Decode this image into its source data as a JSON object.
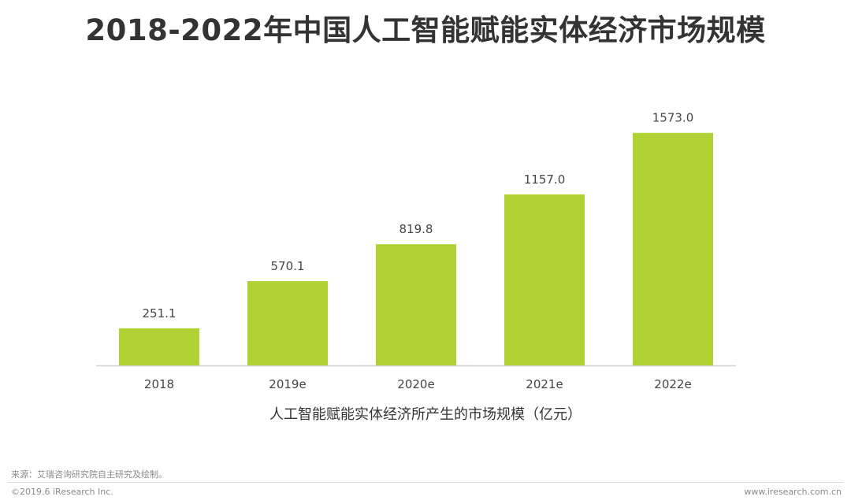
{
  "chart_data": {
    "type": "bar",
    "title": "2018-2022年中国人工智能赋能实体经济市场规模",
    "categories": [
      "2018",
      "2019e",
      "2020e",
      "2021e",
      "2022e"
    ],
    "values": [
      251.1,
      570.1,
      819.8,
      1157.0,
      1573.0
    ],
    "value_labels": [
      "251.1",
      "570.1",
      "819.8",
      "1157.0",
      "1573.0"
    ],
    "xlabel": "人工智能赋能实体经济所产生的市场规模（亿元）",
    "ylabel": "",
    "ylim": [
      0,
      1800
    ],
    "grid": false,
    "legend": "none",
    "colors": {
      "bar": "#b1d235",
      "axis": "#d0d0d0"
    }
  },
  "footer": {
    "source": "来源：艾瑞咨询研究院自主研究及绘制。",
    "copyright": "©2019.6 iResearch Inc.",
    "website": "www.iresearch.com.cn"
  }
}
